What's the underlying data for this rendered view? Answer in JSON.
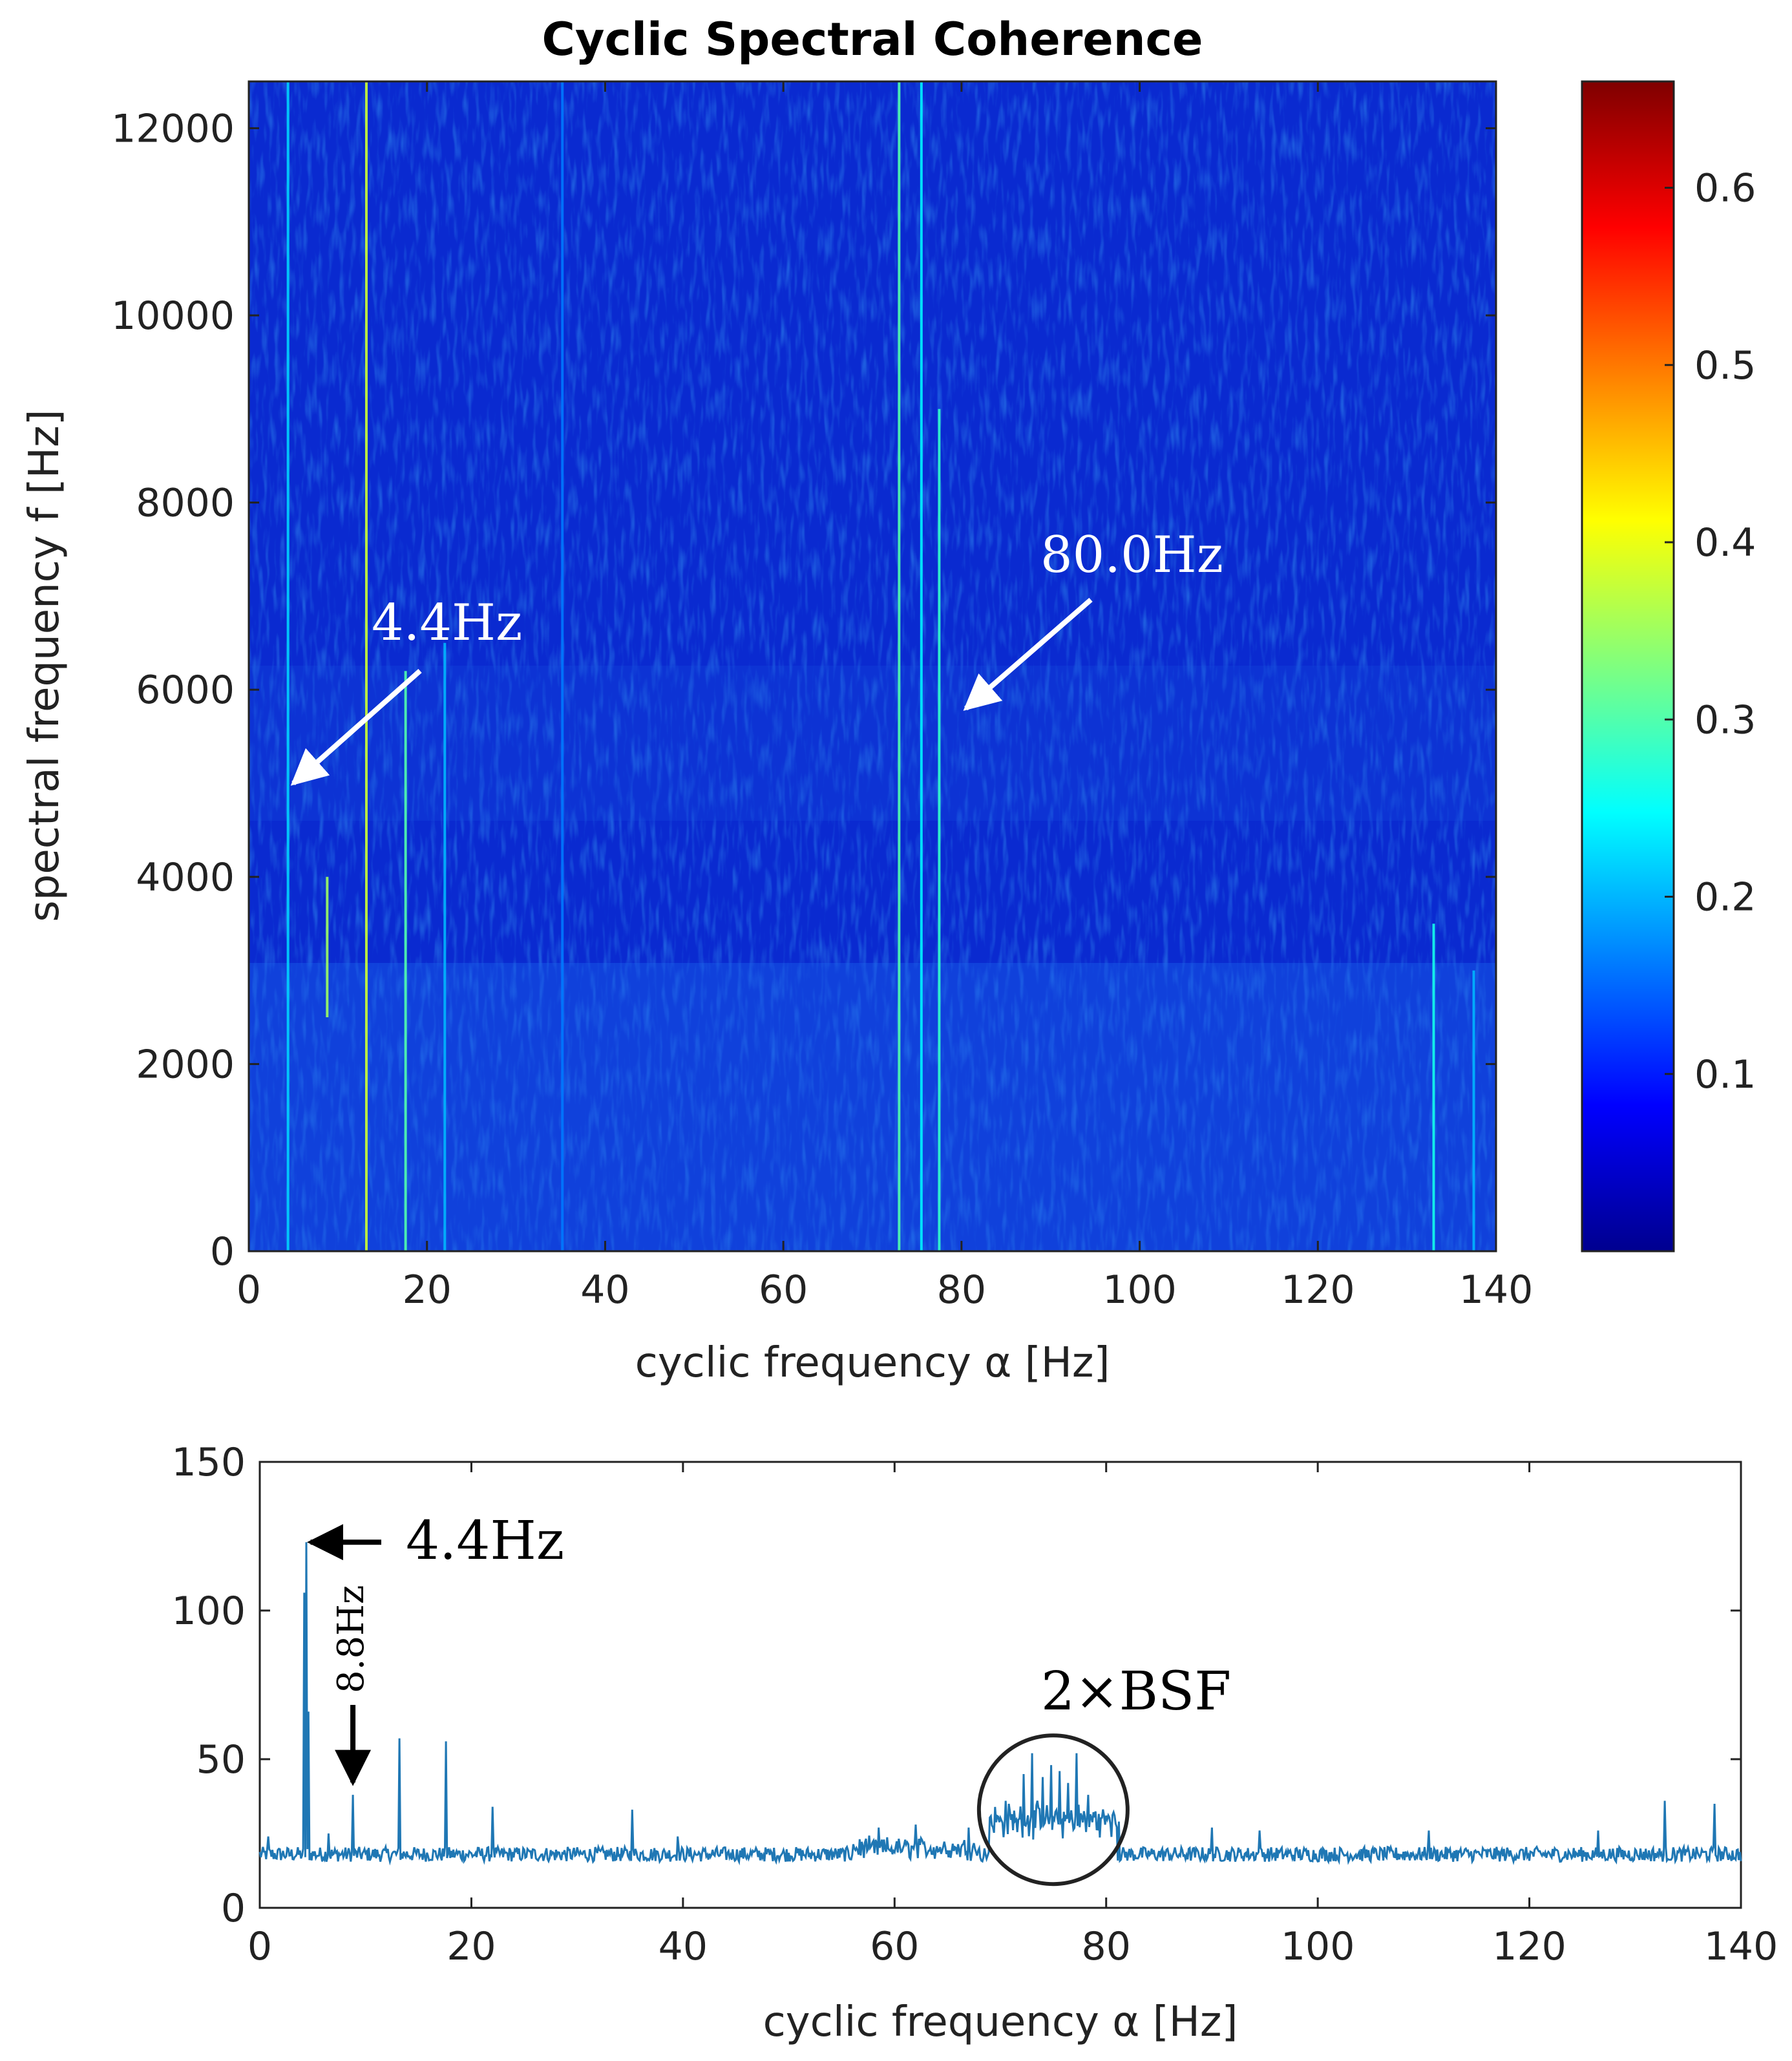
{
  "chart_data": [
    {
      "type": "heatmap",
      "title": "Cyclic Spectral Coherence",
      "xlabel": "cyclic frequency α [Hz]",
      "ylabel": "spectral frequency f [Hz]",
      "xlim": [
        0,
        140
      ],
      "ylim": [
        0,
        12500
      ],
      "xticks": [
        0,
        20,
        40,
        60,
        80,
        100,
        120,
        140
      ],
      "yticks": [
        0,
        2000,
        4000,
        6000,
        8000,
        10000,
        12000
      ],
      "colormap": "jet",
      "colorbar": {
        "min": 0.0,
        "max": 0.66,
        "ticks": [
          0.1,
          0.2,
          0.3,
          0.4,
          0.5,
          0.6
        ]
      },
      "vertical_lines": [
        {
          "alpha": 4.4,
          "f_min": 0,
          "f_max": 12500,
          "intensity": 0.22
        },
        {
          "alpha": 8.8,
          "f_min": 2500,
          "f_max": 4000,
          "intensity": 0.35
        },
        {
          "alpha": 13.2,
          "f_min": 0,
          "f_max": 12500,
          "intensity": 0.38
        },
        {
          "alpha": 17.6,
          "f_min": 0,
          "f_max": 6200,
          "intensity": 0.3
        },
        {
          "alpha": 22.0,
          "f_min": 0,
          "f_max": 6500,
          "intensity": 0.2
        },
        {
          "alpha": 35.2,
          "f_min": 0,
          "f_max": 12500,
          "intensity": 0.16
        },
        {
          "alpha": 73.0,
          "f_min": 0,
          "f_max": 12500,
          "intensity": 0.3
        },
        {
          "alpha": 75.5,
          "f_min": 0,
          "f_max": 12500,
          "intensity": 0.24
        },
        {
          "alpha": 77.5,
          "f_min": 0,
          "f_max": 9000,
          "intensity": 0.28
        },
        {
          "alpha": 133.0,
          "f_min": 0,
          "f_max": 3500,
          "intensity": 0.26
        },
        {
          "alpha": 137.5,
          "f_min": 0,
          "f_max": 3000,
          "intensity": 0.2
        }
      ],
      "annotations": [
        {
          "text": "4.4Hz",
          "target_alpha": 5.0,
          "target_f": 5000
        },
        {
          "text": "80.0Hz",
          "target_alpha": 80.5,
          "target_f": 5800
        }
      ]
    },
    {
      "type": "line",
      "title": "",
      "xlabel": "cyclic frequency α [Hz]",
      "ylabel": "",
      "xlim": [
        0,
        140
      ],
      "ylim": [
        0,
        150
      ],
      "xticks": [
        0,
        20,
        40,
        60,
        80,
        100,
        120,
        140
      ],
      "yticks": [
        0,
        50,
        100,
        150
      ],
      "color": "#1f77b4",
      "baseline": 18,
      "peaks": [
        {
          "x": 0.8,
          "y": 24
        },
        {
          "x": 4.2,
          "y": 106
        },
        {
          "x": 4.4,
          "y": 123
        },
        {
          "x": 4.6,
          "y": 66
        },
        {
          "x": 6.5,
          "y": 25
        },
        {
          "x": 8.8,
          "y": 38
        },
        {
          "x": 13.2,
          "y": 57
        },
        {
          "x": 17.6,
          "y": 56
        },
        {
          "x": 22.0,
          "y": 34
        },
        {
          "x": 35.2,
          "y": 33
        },
        {
          "x": 39.5,
          "y": 24
        },
        {
          "x": 58.5,
          "y": 27
        },
        {
          "x": 62.0,
          "y": 28
        },
        {
          "x": 67.0,
          "y": 27
        },
        {
          "x": 70.5,
          "y": 36
        },
        {
          "x": 72.2,
          "y": 45
        },
        {
          "x": 73.0,
          "y": 52
        },
        {
          "x": 74.0,
          "y": 44
        },
        {
          "x": 74.8,
          "y": 48
        },
        {
          "x": 75.6,
          "y": 46
        },
        {
          "x": 76.4,
          "y": 42
        },
        {
          "x": 77.2,
          "y": 52
        },
        {
          "x": 78.3,
          "y": 38
        },
        {
          "x": 80.0,
          "y": 31
        },
        {
          "x": 81.2,
          "y": 29
        },
        {
          "x": 90.0,
          "y": 27
        },
        {
          "x": 94.5,
          "y": 26
        },
        {
          "x": 110.5,
          "y": 26
        },
        {
          "x": 126.5,
          "y": 26
        },
        {
          "x": 132.8,
          "y": 36
        },
        {
          "x": 137.5,
          "y": 35
        }
      ],
      "annotations": [
        {
          "text": "4.4Hz",
          "target_x": 4.8,
          "target_y": 123
        },
        {
          "text": "8.8Hz",
          "target_x": 8.8,
          "target_y": 40
        },
        {
          "text": "2×BSF",
          "circle_center_x": 75,
          "circle_center_y": 33
        }
      ]
    }
  ]
}
